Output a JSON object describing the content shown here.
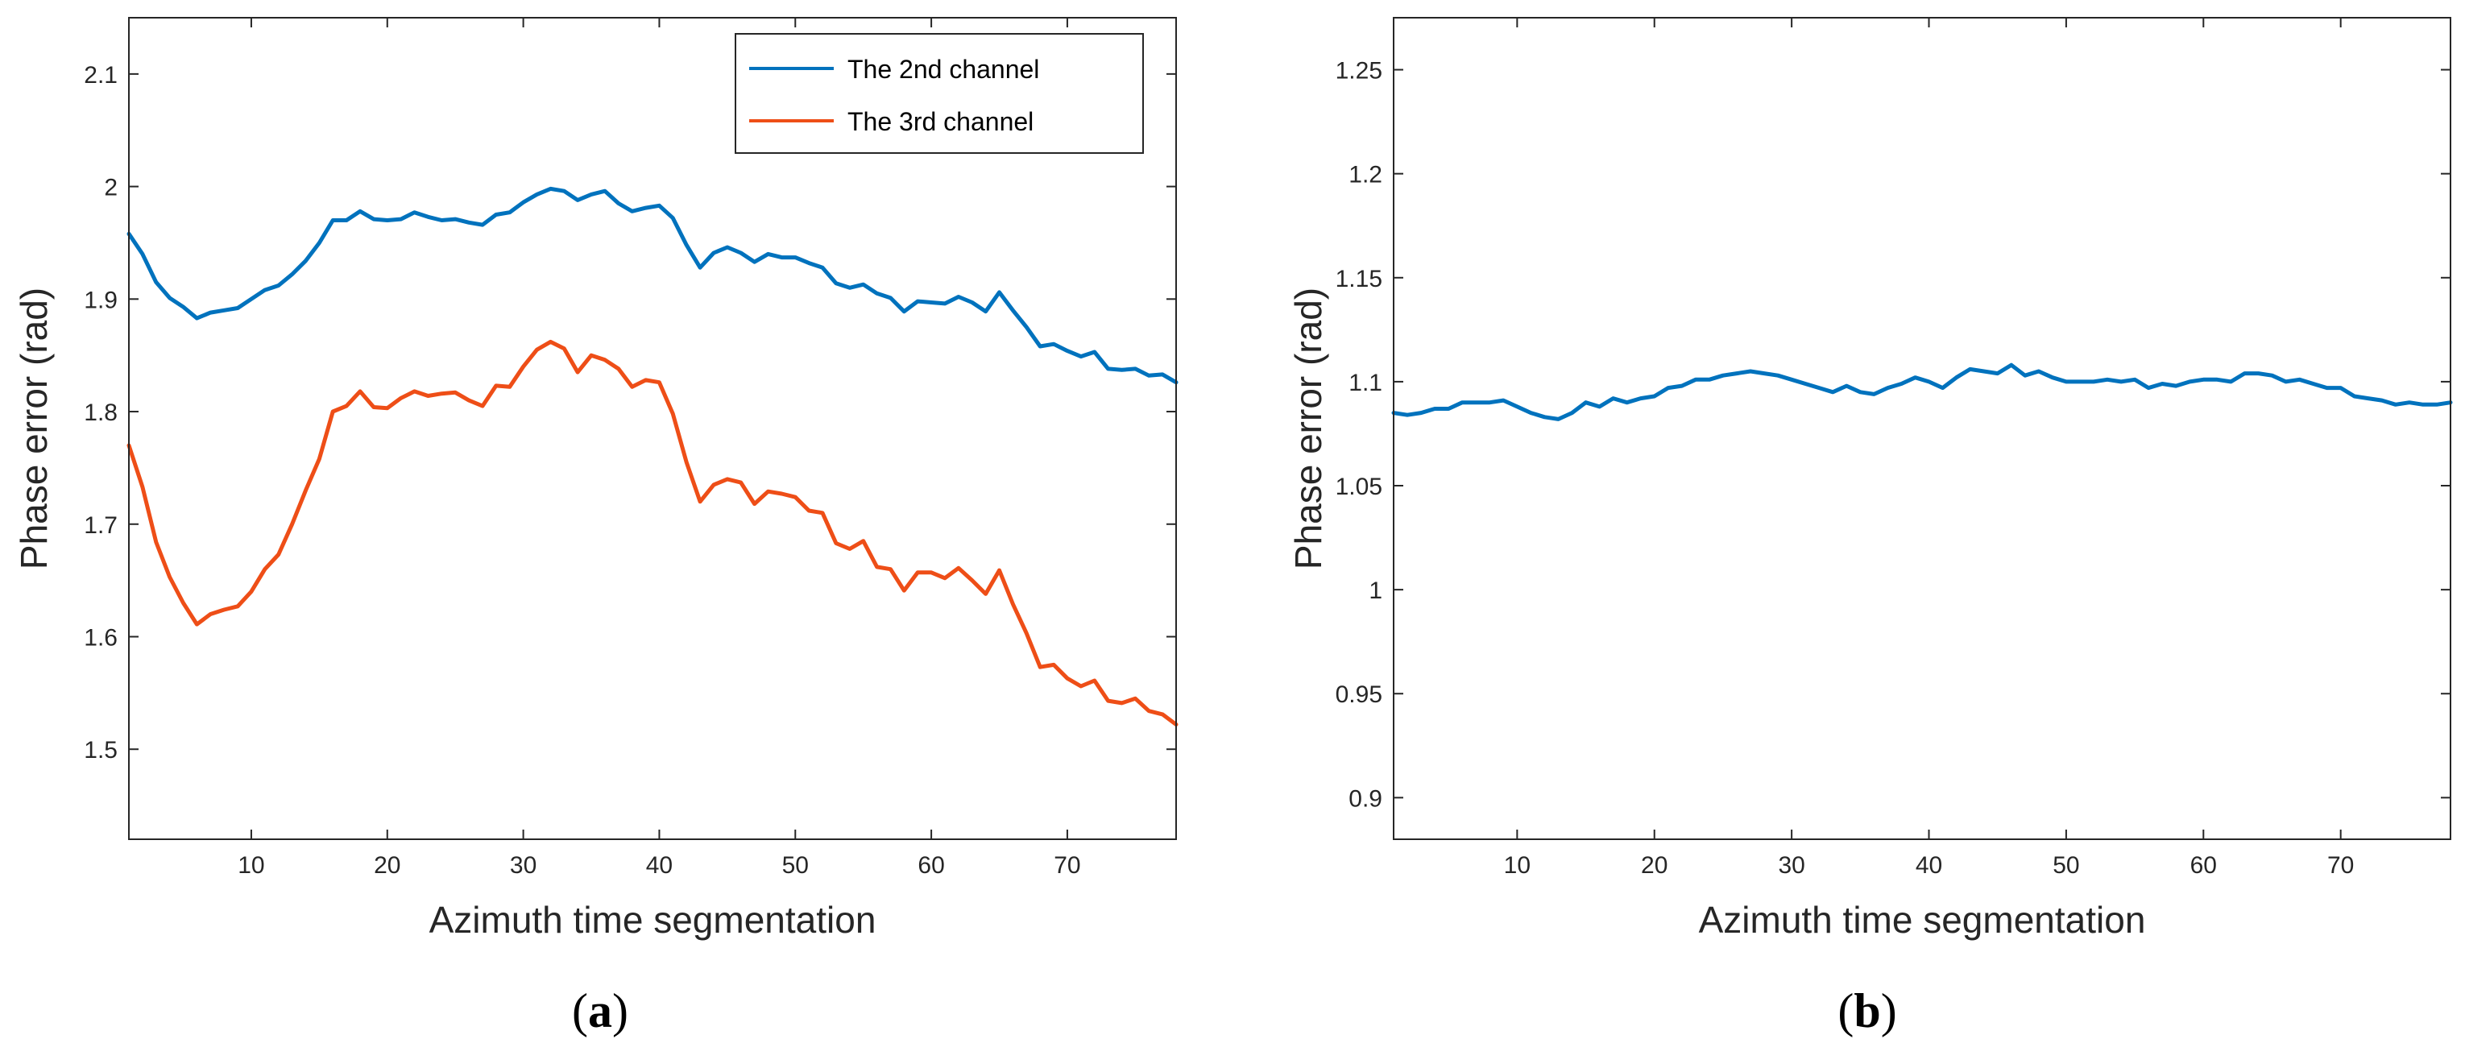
{
  "colors": {
    "series1": "#0072BD",
    "series2": "#EE4E17",
    "axis": "#262626"
  },
  "chart_data": [
    {
      "type": "line",
      "panel": "(a)",
      "caption_letter": "a",
      "xlabel": "Azimuth time segmentation",
      "ylabel": "Phase error (rad)",
      "xlim": [
        1,
        78
      ],
      "ylim": [
        1.42,
        2.15
      ],
      "xticks": [
        10,
        20,
        30,
        40,
        50,
        60,
        70
      ],
      "yticks": [
        1.5,
        1.6,
        1.7,
        1.8,
        1.9,
        2,
        2.1
      ],
      "legend_position": "top-right",
      "series": [
        {
          "name": "The 2nd channel",
          "color": "#0072BD",
          "values": [
            1.958,
            1.94,
            1.915,
            1.901,
            1.893,
            1.883,
            1.888,
            1.89,
            1.892,
            1.9,
            1.908,
            1.912,
            1.922,
            1.934,
            1.95,
            1.97,
            1.97,
            1.978,
            1.971,
            1.97,
            1.971,
            1.977,
            1.973,
            1.97,
            1.971,
            1.968,
            1.966,
            1.975,
            1.977,
            1.986,
            1.993,
            1.998,
            1.996,
            1.988,
            1.993,
            1.996,
            1.985,
            1.978,
            1.981,
            1.983,
            1.972,
            1.948,
            1.928,
            1.941,
            1.946,
            1.941,
            1.933,
            1.94,
            1.937,
            1.937,
            1.932,
            1.928,
            1.914,
            1.91,
            1.913,
            1.905,
            1.901,
            1.889,
            1.898,
            1.897,
            1.896,
            1.902,
            1.897,
            1.889,
            1.906,
            1.89,
            1.875,
            1.858,
            1.86,
            1.854,
            1.849,
            1.853,
            1.838,
            1.837,
            1.838,
            1.832,
            1.833,
            1.826
          ]
        },
        {
          "name": "The 3rd channel",
          "color": "#EE4E17",
          "values": [
            1.77,
            1.733,
            1.684,
            1.653,
            1.63,
            1.611,
            1.62,
            1.624,
            1.627,
            1.64,
            1.66,
            1.673,
            1.7,
            1.73,
            1.758,
            1.8,
            1.805,
            1.818,
            1.804,
            1.803,
            1.812,
            1.818,
            1.814,
            1.816,
            1.817,
            1.81,
            1.805,
            1.823,
            1.822,
            1.84,
            1.855,
            1.862,
            1.856,
            1.835,
            1.85,
            1.846,
            1.838,
            1.822,
            1.828,
            1.826,
            1.798,
            1.755,
            1.72,
            1.735,
            1.74,
            1.737,
            1.718,
            1.729,
            1.727,
            1.724,
            1.712,
            1.71,
            1.683,
            1.678,
            1.685,
            1.662,
            1.66,
            1.641,
            1.657,
            1.657,
            1.652,
            1.661,
            1.65,
            1.638,
            1.659,
            1.629,
            1.603,
            1.573,
            1.575,
            1.563,
            1.556,
            1.561,
            1.543,
            1.541,
            1.545,
            1.534,
            1.531,
            1.522
          ]
        }
      ]
    },
    {
      "type": "line",
      "panel": "(b)",
      "caption_letter": "b",
      "xlabel": "Azimuth time segmentation",
      "ylabel": "Phase error (rad)",
      "xlim": [
        1,
        78
      ],
      "ylim": [
        0.88,
        1.275
      ],
      "xticks": [
        10,
        20,
        30,
        40,
        50,
        60,
        70
      ],
      "yticks": [
        0.9,
        0.95,
        1,
        1.05,
        1.1,
        1.15,
        1.2,
        1.25
      ],
      "series": [
        {
          "name": "Phase error",
          "color": "#0072BD",
          "values": [
            1.085,
            1.084,
            1.085,
            1.087,
            1.087,
            1.09,
            1.09,
            1.09,
            1.091,
            1.088,
            1.085,
            1.083,
            1.082,
            1.085,
            1.09,
            1.088,
            1.092,
            1.09,
            1.092,
            1.093,
            1.097,
            1.098,
            1.101,
            1.101,
            1.103,
            1.104,
            1.105,
            1.104,
            1.103,
            1.101,
            1.099,
            1.097,
            1.095,
            1.098,
            1.095,
            1.094,
            1.097,
            1.099,
            1.102,
            1.1,
            1.097,
            1.102,
            1.106,
            1.105,
            1.104,
            1.108,
            1.103,
            1.105,
            1.102,
            1.1,
            1.1,
            1.1,
            1.101,
            1.1,
            1.101,
            1.097,
            1.099,
            1.098,
            1.1,
            1.101,
            1.101,
            1.1,
            1.104,
            1.104,
            1.103,
            1.1,
            1.101,
            1.099,
            1.097,
            1.097,
            1.093,
            1.092,
            1.091,
            1.089,
            1.09,
            1.089,
            1.089,
            1.09
          ]
        }
      ]
    }
  ]
}
